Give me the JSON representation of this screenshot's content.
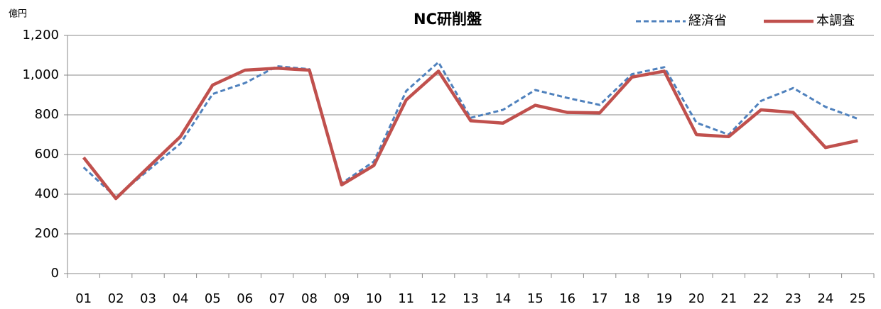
{
  "chart_data": {
    "type": "line",
    "title": "NC研削盤",
    "y_unit": "億円",
    "categories": [
      "01",
      "02",
      "03",
      "04",
      "05",
      "06",
      "07",
      "08",
      "09",
      "10",
      "11",
      "12",
      "13",
      "14",
      "15",
      "16",
      "17",
      "18",
      "19",
      "20",
      "21",
      "22",
      "23",
      "24",
      "25"
    ],
    "series": [
      {
        "name": "経済省",
        "color": "#4f81bd",
        "dashed": true,
        "values": [
          535,
          385,
          520,
          655,
          905,
          960,
          1045,
          1030,
          455,
          565,
          920,
          1065,
          785,
          825,
          925,
          885,
          850,
          1005,
          1040,
          760,
          700,
          870,
          935,
          840,
          780
        ]
      },
      {
        "name": "本調査",
        "color": "#c0504d",
        "dashed": false,
        "values": [
          585,
          378,
          535,
          690,
          950,
          1025,
          1035,
          1025,
          447,
          545,
          875,
          1020,
          770,
          758,
          848,
          812,
          810,
          990,
          1020,
          700,
          690,
          825,
          812,
          635,
          670
        ]
      }
    ],
    "ylim": [
      0,
      1200
    ],
    "yticks": [
      0,
      200,
      400,
      600,
      800,
      {
        "value": 1000,
        "label": "1,000"
      },
      {
        "value": 1200,
        "label": "1,200"
      }
    ],
    "grid": true,
    "legend": "top-right"
  }
}
